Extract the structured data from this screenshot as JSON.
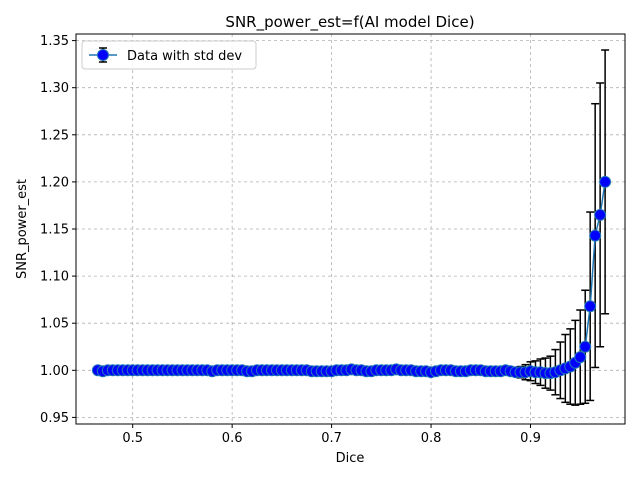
{
  "chart_data": {
    "type": "line",
    "title": "SNR_power_est=f(AI model Dice)",
    "xlabel": "Dice",
    "ylabel": "SNR_power_est",
    "xlim": [
      0.443,
      0.995
    ],
    "ylim": [
      0.943,
      1.357
    ],
    "xticks": [
      0.5,
      0.6,
      0.7,
      0.8,
      0.9
    ],
    "xtick_labels": [
      "0.5",
      "0.6",
      "0.7",
      "0.8",
      "0.9"
    ],
    "yticks": [
      0.95,
      1.0,
      1.05,
      1.1,
      1.15,
      1.2,
      1.25,
      1.3,
      1.35
    ],
    "ytick_labels": [
      "0.95",
      "1.00",
      "1.05",
      "1.10",
      "1.15",
      "1.20",
      "1.25",
      "1.30",
      "1.35"
    ],
    "grid": true,
    "legend": {
      "position": "top-left",
      "entries": [
        "Data with std dev"
      ]
    },
    "colors": {
      "line": "#1f77b4",
      "marker_fill": "#0000ff",
      "marker_edge": "#1f77b4",
      "errorbar": "#000000",
      "grid": "#b0b0b0"
    },
    "series": [
      {
        "name": "Data with std dev",
        "x": [
          0.465,
          0.47,
          0.475,
          0.48,
          0.485,
          0.49,
          0.495,
          0.5,
          0.505,
          0.51,
          0.515,
          0.52,
          0.525,
          0.53,
          0.535,
          0.54,
          0.545,
          0.55,
          0.555,
          0.56,
          0.565,
          0.57,
          0.575,
          0.58,
          0.585,
          0.59,
          0.595,
          0.6,
          0.605,
          0.61,
          0.615,
          0.62,
          0.625,
          0.63,
          0.635,
          0.64,
          0.645,
          0.65,
          0.655,
          0.66,
          0.665,
          0.67,
          0.675,
          0.68,
          0.685,
          0.69,
          0.695,
          0.7,
          0.705,
          0.71,
          0.715,
          0.72,
          0.725,
          0.73,
          0.735,
          0.74,
          0.745,
          0.75,
          0.755,
          0.76,
          0.765,
          0.77,
          0.775,
          0.78,
          0.785,
          0.79,
          0.795,
          0.8,
          0.805,
          0.81,
          0.815,
          0.82,
          0.825,
          0.83,
          0.835,
          0.84,
          0.845,
          0.85,
          0.855,
          0.86,
          0.865,
          0.87,
          0.875,
          0.88,
          0.885,
          0.89,
          0.895,
          0.9,
          0.905,
          0.91,
          0.915,
          0.92,
          0.925,
          0.93,
          0.935,
          0.94,
          0.945,
          0.95,
          0.955,
          0.96,
          0.965,
          0.97,
          0.975
        ],
        "y": [
          1.0,
          0.999,
          1.0,
          1.0,
          1.0,
          1.0,
          1.0,
          1.0,
          1.0,
          1.0,
          1.0,
          1.0,
          1.0,
          1.0,
          1.0,
          1.0,
          1.0,
          1.0,
          1.0,
          1.0,
          1.0,
          1.0,
          1.0,
          0.999,
          1.0,
          1.0,
          1.0,
          1.0,
          1.0,
          1.0,
          0.999,
          0.999,
          1.0,
          1.0,
          1.0,
          1.0,
          1.0,
          1.0,
          1.0,
          1.0,
          1.0,
          1.0,
          1.0,
          0.999,
          0.999,
          0.999,
          0.999,
          0.999,
          1.0,
          1.0,
          1.0,
          1.001,
          1.0,
          1.0,
          0.999,
          0.999,
          1.0,
          1.0,
          1.0,
          1.0,
          1.001,
          1.0,
          1.0,
          1.0,
          0.999,
          0.999,
          0.999,
          0.998,
          0.999,
          1.0,
          1.0,
          1.0,
          0.999,
          0.999,
          0.999,
          1.0,
          1.0,
          1.0,
          0.999,
          0.999,
          0.999,
          0.999,
          1.0,
          0.999,
          0.998,
          0.998,
          0.998,
          0.999,
          0.998,
          0.998,
          0.997,
          0.997,
          0.998,
          1.0,
          1.002,
          1.004,
          1.008,
          1.014,
          1.025,
          1.068,
          1.143,
          1.165,
          1.2
        ],
        "err": [
          0.001,
          0.001,
          0.001,
          0.001,
          0.001,
          0.001,
          0.001,
          0.001,
          0.001,
          0.001,
          0.001,
          0.001,
          0.001,
          0.001,
          0.001,
          0.001,
          0.001,
          0.001,
          0.001,
          0.001,
          0.001,
          0.001,
          0.001,
          0.001,
          0.001,
          0.001,
          0.001,
          0.001,
          0.001,
          0.001,
          0.001,
          0.001,
          0.001,
          0.001,
          0.001,
          0.001,
          0.001,
          0.001,
          0.001,
          0.001,
          0.001,
          0.001,
          0.001,
          0.001,
          0.001,
          0.001,
          0.001,
          0.001,
          0.001,
          0.001,
          0.001,
          0.001,
          0.001,
          0.001,
          0.001,
          0.001,
          0.001,
          0.001,
          0.001,
          0.001,
          0.001,
          0.001,
          0.001,
          0.001,
          0.001,
          0.001,
          0.001,
          0.001,
          0.001,
          0.001,
          0.001,
          0.001,
          0.001,
          0.001,
          0.001,
          0.001,
          0.001,
          0.001,
          0.001,
          0.001,
          0.002,
          0.002,
          0.002,
          0.003,
          0.004,
          0.006,
          0.008,
          0.01,
          0.012,
          0.014,
          0.016,
          0.018,
          0.024,
          0.03,
          0.036,
          0.04,
          0.045,
          0.05,
          0.06,
          0.1,
          0.14,
          0.14,
          0.14
        ]
      }
    ]
  }
}
